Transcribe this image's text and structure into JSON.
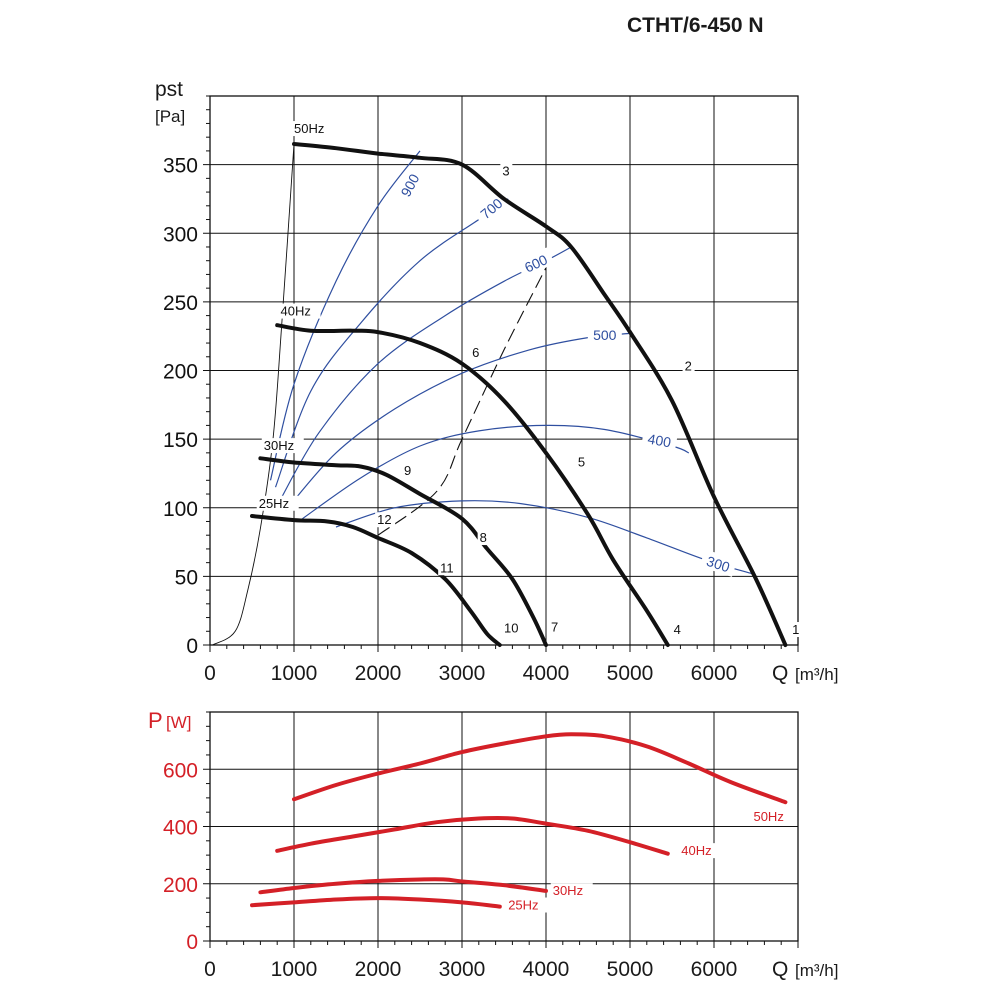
{
  "title": "CTHT/6-450 N",
  "colors": {
    "fan": "#111111",
    "rpm": "#2f4fa0",
    "power": "#d42027",
    "grid": "#111111",
    "system": "#111111"
  },
  "chart_data": [
    {
      "type": "line",
      "ylabel_main": "pst",
      "ylabel_unit": "[Pa]",
      "xlabel_main": "Q",
      "xlabel_unit": "[m³/h]",
      "xlim": [
        0,
        7000
      ],
      "ylim": [
        0,
        400
      ],
      "x_ticks": [
        0,
        1000,
        2000,
        3000,
        4000,
        5000,
        6000
      ],
      "y_ticks": [
        0,
        50,
        100,
        150,
        200,
        250,
        300,
        350
      ],
      "grid": true,
      "fan_curves": [
        {
          "name": "50Hz",
          "points": [
            [
              1000,
              365
            ],
            [
              1500,
              362
            ],
            [
              2000,
              358
            ],
            [
              2500,
              355
            ],
            [
              3000,
              350
            ],
            [
              3500,
              325
            ],
            [
              4000,
              305
            ],
            [
              4300,
              290
            ],
            [
              4700,
              255
            ],
            [
              5000,
              228
            ],
            [
              5500,
              178
            ],
            [
              6000,
              108
            ],
            [
              6500,
              48
            ],
            [
              6850,
              0
            ]
          ]
        },
        {
          "name": "40Hz",
          "points": [
            [
              800,
              233
            ],
            [
              1200,
              229
            ],
            [
              1700,
              229
            ],
            [
              2000,
              228
            ],
            [
              2500,
              220
            ],
            [
              3000,
              205
            ],
            [
              3500,
              178
            ],
            [
              4000,
              140
            ],
            [
              4500,
              95
            ],
            [
              4800,
              62
            ],
            [
              5200,
              25
            ],
            [
              5450,
              0
            ]
          ]
        },
        {
          "name": "30Hz",
          "points": [
            [
              600,
              136
            ],
            [
              1000,
              133
            ],
            [
              1500,
              131
            ],
            [
              1800,
              130
            ],
            [
              2100,
              124
            ],
            [
              2500,
              110
            ],
            [
              3000,
              92
            ],
            [
              3300,
              70
            ],
            [
              3600,
              48
            ],
            [
              3850,
              20
            ],
            [
              4000,
              0
            ]
          ]
        },
        {
          "name": "25Hz",
          "points": [
            [
              500,
              94
            ],
            [
              1000,
              91
            ],
            [
              1400,
              90
            ],
            [
              1700,
              86
            ],
            [
              2000,
              78
            ],
            [
              2400,
              67
            ],
            [
              2800,
              48
            ],
            [
              3100,
              25
            ],
            [
              3300,
              8
            ],
            [
              3450,
              0
            ]
          ]
        }
      ],
      "system_curve": {
        "points": [
          [
            30,
            0
          ],
          [
            300,
            10
          ],
          [
            450,
            40
          ],
          [
            600,
            85
          ],
          [
            750,
            150
          ],
          [
            850,
            230
          ],
          [
            1000,
            365
          ]
        ]
      },
      "dashed_curve": {
        "points": [
          [
            2000,
            80
          ],
          [
            2700,
            112
          ],
          [
            3000,
            150
          ],
          [
            3500,
            215
          ],
          [
            4000,
            275
          ],
          [
            4050,
            282
          ]
        ]
      },
      "curve_labels": [
        {
          "text": "3",
          "x": 3480,
          "y": 342
        },
        {
          "text": "2",
          "x": 5650,
          "y": 200
        },
        {
          "text": "1",
          "x": 6930,
          "y": 8
        },
        {
          "text": "6",
          "x": 3120,
          "y": 210
        },
        {
          "text": "5",
          "x": 4380,
          "y": 130
        },
        {
          "text": "4",
          "x": 5520,
          "y": 8
        },
        {
          "text": "9",
          "x": 2310,
          "y": 124
        },
        {
          "text": "8",
          "x": 3210,
          "y": 75
        },
        {
          "text": "7",
          "x": 4060,
          "y": 10
        },
        {
          "text": "12",
          "x": 1990,
          "y": 88
        },
        {
          "text": "11",
          "x": 2740,
          "y": 53
        },
        {
          "text": "10",
          "x": 3500,
          "y": 9
        }
      ],
      "rpm_curves": [
        {
          "name": "900",
          "label_x": 2380,
          "label_y": 335,
          "label_angle": -62,
          "points": [
            [
              720,
              120
            ],
            [
              1000,
              190
            ],
            [
              1500,
              265
            ],
            [
              2000,
              320
            ],
            [
              2500,
              360
            ]
          ]
        },
        {
          "name": "700",
          "label_x": 3350,
          "label_y": 318,
          "label_angle": -40,
          "points": [
            [
              780,
              115
            ],
            [
              1200,
              185
            ],
            [
              1800,
              235
            ],
            [
              2500,
              280
            ],
            [
              3200,
              310
            ],
            [
              3550,
              325
            ]
          ]
        },
        {
          "name": "600",
          "label_x": 3880,
          "label_y": 278,
          "label_angle": -25,
          "points": [
            [
              830,
              105
            ],
            [
              1300,
              155
            ],
            [
              2000,
              205
            ],
            [
              2800,
              240
            ],
            [
              3500,
              265
            ],
            [
              4000,
              280
            ],
            [
              4300,
              290
            ]
          ]
        },
        {
          "name": "500",
          "label_x": 4700,
          "label_y": 226,
          "label_angle": 0,
          "points": [
            [
              900,
              98
            ],
            [
              1500,
              140
            ],
            [
              2200,
              172
            ],
            [
              3000,
              198
            ],
            [
              3800,
              215
            ],
            [
              4500,
              224
            ],
            [
              5000,
              227
            ]
          ]
        },
        {
          "name": "400",
          "label_x": 5350,
          "label_y": 149,
          "label_angle": 10,
          "points": [
            [
              1100,
              92
            ],
            [
              1800,
              122
            ],
            [
              2500,
              145
            ],
            [
              3200,
              156
            ],
            [
              4000,
              160
            ],
            [
              4700,
              157
            ],
            [
              5500,
              145
            ],
            [
              5700,
              140
            ]
          ]
        },
        {
          "name": "300",
          "label_x": 6050,
          "label_y": 59,
          "label_angle": 18,
          "points": [
            [
              1500,
              86
            ],
            [
              2200,
              100
            ],
            [
              3000,
              105
            ],
            [
              3700,
              103
            ],
            [
              4500,
              93
            ],
            [
              5200,
              78
            ],
            [
              5900,
              62
            ],
            [
              6450,
              52
            ]
          ]
        }
      ],
      "frequency_labels": [
        {
          "text": "50Hz",
          "x": 1000,
          "y": 373
        },
        {
          "text": "40Hz",
          "x": 840,
          "y": 240
        },
        {
          "text": "30Hz",
          "x": 640,
          "y": 142
        },
        {
          "text": "25Hz",
          "x": 580,
          "y": 100
        }
      ]
    },
    {
      "type": "line",
      "ylabel_main": "P",
      "ylabel_unit": "[W]",
      "xlabel_main": "Q",
      "xlabel_unit": "[m³/h]",
      "xlim": [
        0,
        7000
      ],
      "ylim": [
        0,
        800
      ],
      "x_ticks": [
        0,
        1000,
        2000,
        3000,
        4000,
        5000,
        6000
      ],
      "y_ticks": [
        0,
        200,
        400,
        600
      ],
      "grid": true,
      "series": [
        {
          "name": "50Hz",
          "points": [
            [
              1000,
              495
            ],
            [
              1500,
              545
            ],
            [
              2000,
              585
            ],
            [
              2500,
              620
            ],
            [
              3000,
              660
            ],
            [
              3500,
              690
            ],
            [
              4000,
              715
            ],
            [
              4300,
              722
            ],
            [
              4700,
              715
            ],
            [
              5200,
              680
            ],
            [
              5700,
              620
            ],
            [
              6200,
              555
            ],
            [
              6850,
              485
            ]
          ]
        },
        {
          "name": "40Hz",
          "points": [
            [
              800,
              315
            ],
            [
              1200,
              340
            ],
            [
              1700,
              365
            ],
            [
              2200,
              390
            ],
            [
              2700,
              415
            ],
            [
              3200,
              428
            ],
            [
              3600,
              428
            ],
            [
              4000,
              410
            ],
            [
              4500,
              385
            ],
            [
              5000,
              345
            ],
            [
              5450,
              305
            ]
          ]
        },
        {
          "name": "30Hz",
          "points": [
            [
              600,
              170
            ],
            [
              1000,
              185
            ],
            [
              1500,
              200
            ],
            [
              2000,
              210
            ],
            [
              2500,
              215
            ],
            [
              2800,
              215
            ],
            [
              3000,
              208
            ],
            [
              3500,
              195
            ],
            [
              4000,
              175
            ]
          ]
        },
        {
          "name": "25Hz",
          "points": [
            [
              500,
              125
            ],
            [
              1000,
              135
            ],
            [
              1500,
              145
            ],
            [
              2000,
              150
            ],
            [
              2500,
              145
            ],
            [
              3000,
              135
            ],
            [
              3450,
              120
            ]
          ]
        }
      ],
      "series_labels": [
        {
          "text": "50Hz",
          "x": 6470,
          "y": 420
        },
        {
          "text": "40Hz",
          "x": 5610,
          "y": 300
        },
        {
          "text": "30Hz",
          "x": 4080,
          "y": 160
        },
        {
          "text": "25Hz",
          "x": 3550,
          "y": 110
        }
      ]
    }
  ]
}
